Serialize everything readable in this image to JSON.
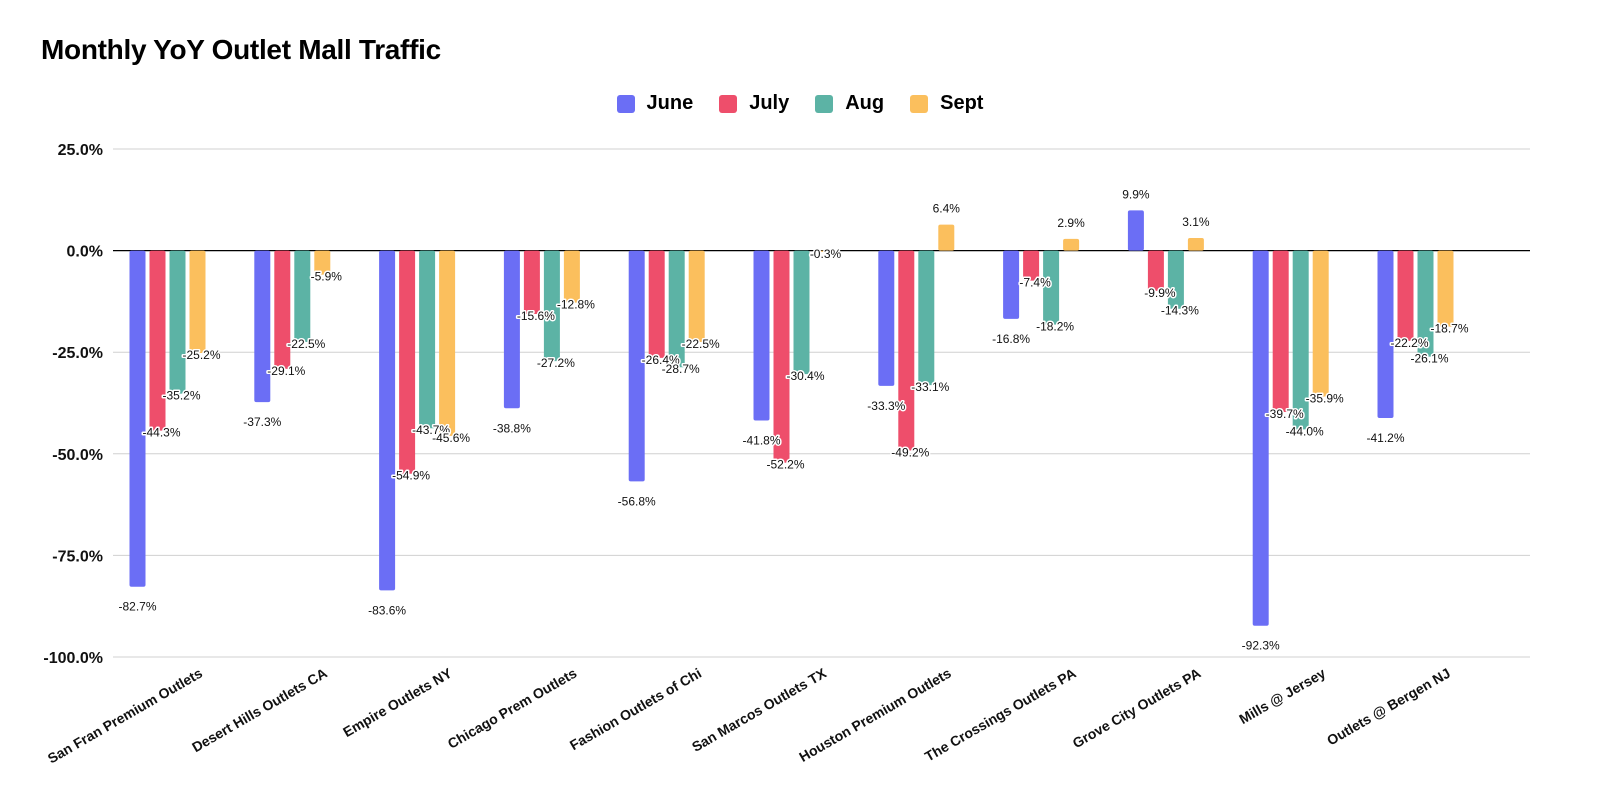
{
  "chart_data": {
    "type": "bar",
    "title": "Monthly YoY Outlet Mall Traffic",
    "xlabel": "",
    "ylabel": "",
    "ylim": [
      -100,
      25
    ],
    "yticks": [
      25,
      0,
      -25,
      -50,
      -75,
      -100
    ],
    "ytick_labels": [
      "25.0%",
      "0.0%",
      "-25.0%",
      "-50.0%",
      "-75.0%",
      "-100.0%"
    ],
    "grid": true,
    "legend_position": "top-center",
    "categories": [
      "San Fran Premium Outlets",
      "Desert Hills Outlets CA",
      "Empire Outlets NY",
      "Chicago Prem Outlets",
      "Fashion Outlets of Chi",
      "San Marcos Outlets TX",
      "Houston Premium Outlets",
      "The Crossings Outlets PA",
      "Grove City Outlets PA",
      "Mills @ Jersey",
      "Outlets @ Bergen NJ"
    ],
    "series": [
      {
        "name": "June",
        "color": "#6b6ef5",
        "values": [
          -82.7,
          -37.3,
          -83.6,
          -38.8,
          -56.8,
          -41.8,
          -33.3,
          -16.8,
          9.9,
          -92.3,
          -41.2
        ],
        "labels": [
          "-82.7%",
          "-37.3%",
          "-83.6%",
          "-38.8%",
          "-56.8%",
          "-41.8%",
          "-33.3%",
          "-16.8%",
          "9.9%",
          "-92.3%",
          "-41.2%"
        ]
      },
      {
        "name": "July",
        "color": "#ee4e6b",
        "values": [
          -44.3,
          -29.1,
          -54.9,
          -15.6,
          -26.4,
          -52.2,
          -49.2,
          -7.4,
          -9.9,
          -39.7,
          -22.2
        ],
        "labels": [
          "-44.3%",
          "-29.1%",
          "-54.9%",
          "-15.6%",
          "-26.4%",
          "-52.2%",
          "-49.2%",
          "-7.4%",
          "-9.9%",
          "-39.7%",
          "-22.2%"
        ]
      },
      {
        "name": "Aug",
        "color": "#5cb3a5",
        "values": [
          -35.2,
          -22.5,
          -43.7,
          -27.2,
          -28.7,
          -30.4,
          -33.1,
          -18.2,
          -14.3,
          -44.0,
          -26.1
        ],
        "labels": [
          "-35.2%",
          "-22.5%",
          "-43.7%",
          "-27.2%",
          "-28.7%",
          "-30.4%",
          "-33.1%",
          "-18.2%",
          "-14.3%",
          "-44.0%",
          "-26.1%"
        ]
      },
      {
        "name": "Sept",
        "color": "#fbbf5d",
        "values": [
          -25.2,
          -5.9,
          -45.6,
          -12.8,
          -22.5,
          -0.3,
          6.4,
          2.9,
          3.1,
          -35.9,
          -18.7
        ],
        "labels": [
          "-25.2%",
          "-5.9%",
          "-45.6%",
          "-12.8%",
          "-22.5%",
          "-0.3%",
          "6.4%",
          "2.9%",
          "3.1%",
          "-35.9%",
          "-18.7%"
        ]
      }
    ]
  }
}
